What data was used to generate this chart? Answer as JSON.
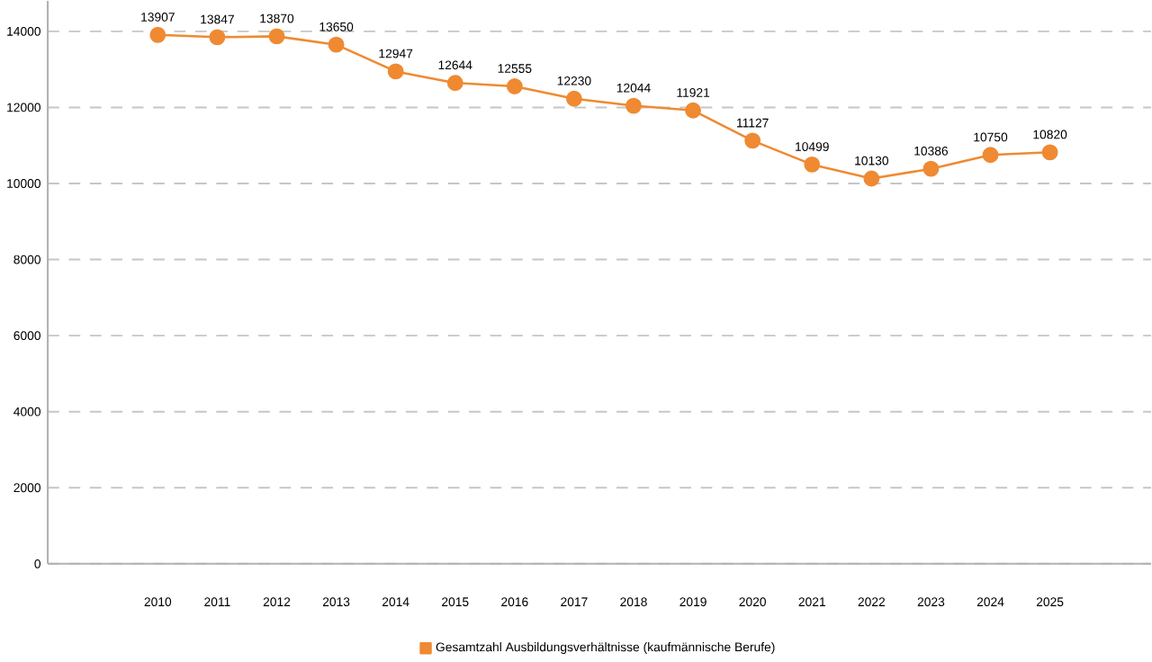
{
  "chart_data": {
    "type": "line",
    "categories": [
      "2010",
      "2011",
      "2012",
      "2013",
      "2014",
      "2015",
      "2016",
      "2017",
      "2018",
      "2019",
      "2020",
      "2021",
      "2022",
      "2023",
      "2024",
      "2025"
    ],
    "series": [
      {
        "name": "Gesamtzahl Ausbildungsverhältnisse (kaufmännische Berufe)",
        "color": "#ef8a32",
        "values": [
          13907,
          13847,
          13870,
          13650,
          12947,
          12644,
          12555,
          12230,
          12044,
          11921,
          11127,
          10499,
          10130,
          10386,
          10750,
          10820
        ]
      }
    ],
    "ylim": [
      0,
      14800
    ],
    "yticks": [
      0,
      2000,
      4000,
      6000,
      8000,
      10000,
      12000,
      14000
    ],
    "grid": "y",
    "legend": "bottom",
    "marker": "circle",
    "line_style": "solid",
    "data_labels": true
  }
}
